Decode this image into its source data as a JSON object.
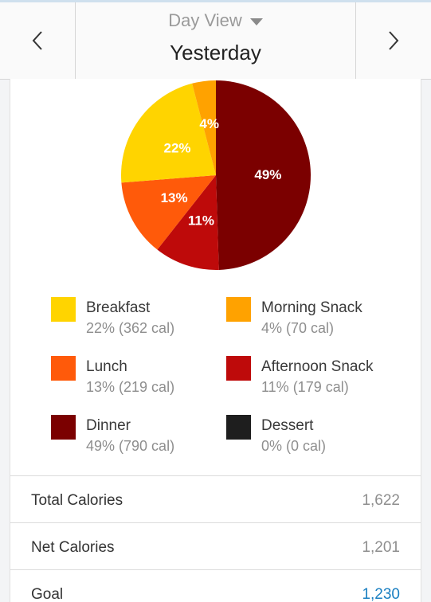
{
  "header": {
    "view_selector": "Day View",
    "date_label": "Yesterday"
  },
  "chart_data": {
    "type": "pie",
    "slices": [
      {
        "name": "Dinner",
        "value": 49,
        "label": "49%",
        "color": "#7b0000"
      },
      {
        "name": "Afternoon Snack",
        "value": 11,
        "label": "11%",
        "color": "#be0a0a"
      },
      {
        "name": "Lunch",
        "value": 13,
        "label": "13%",
        "color": "#ff5a0a"
      },
      {
        "name": "Breakfast",
        "value": 22,
        "label": "22%",
        "color": "#ffd400"
      },
      {
        "name": "Morning Snack",
        "value": 4,
        "label": "4%",
        "color": "#ffa200"
      },
      {
        "name": "Dessert",
        "value": 0,
        "label": "",
        "color": "#1e1e1e"
      }
    ]
  },
  "legend": [
    {
      "name": "Breakfast",
      "detail": "22% (362 cal)",
      "color": "#ffd400"
    },
    {
      "name": "Morning Snack",
      "detail": "4% (70 cal)",
      "color": "#ffa200"
    },
    {
      "name": "Lunch",
      "detail": "13% (219 cal)",
      "color": "#ff5a0a"
    },
    {
      "name": "Afternoon Snack",
      "detail": "11% (179 cal)",
      "color": "#be0a0a"
    },
    {
      "name": "Dinner",
      "detail": "49% (790 cal)",
      "color": "#7b0000"
    },
    {
      "name": "Dessert",
      "detail": "0% (0 cal)",
      "color": "#1e1e1e"
    }
  ],
  "summary": {
    "total_label": "Total Calories",
    "total_value": "1,622",
    "net_label": "Net Calories",
    "net_value": "1,201",
    "goal_label": "Goal",
    "goal_value": "1,230"
  },
  "colors": {
    "link": "#1a7fc1"
  }
}
